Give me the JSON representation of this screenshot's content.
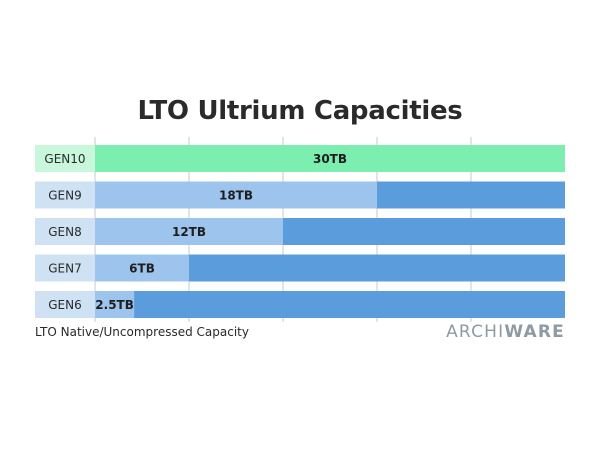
{
  "chart_data": {
    "type": "bar",
    "title": "LTO Ultrium Capacities",
    "categories": [
      "GEN10",
      "GEN9",
      "GEN8",
      "GEN7",
      "GEN6"
    ],
    "values": [
      30,
      18,
      12,
      6,
      2.5
    ],
    "value_labels": [
      "30TB",
      "18TB",
      "12TB",
      "6TB",
      "2.5TB"
    ],
    "unit": "TB",
    "xlim": [
      0,
      30
    ],
    "gridlines": true,
    "colors": {
      "highlight_bar": "#7beeb0",
      "highlight_track": "#2fe07f",
      "highlight_label_cell": "#c9f7dc",
      "bar": "#9dc4ec",
      "track": "#5b9ddc",
      "label_cell": "#cfe2f4",
      "grid": "#c8c8c8"
    }
  },
  "caption": "LTO Native/Uncompressed Capacity",
  "logo": {
    "part1": "ARCHI",
    "part2": "WARE"
  }
}
